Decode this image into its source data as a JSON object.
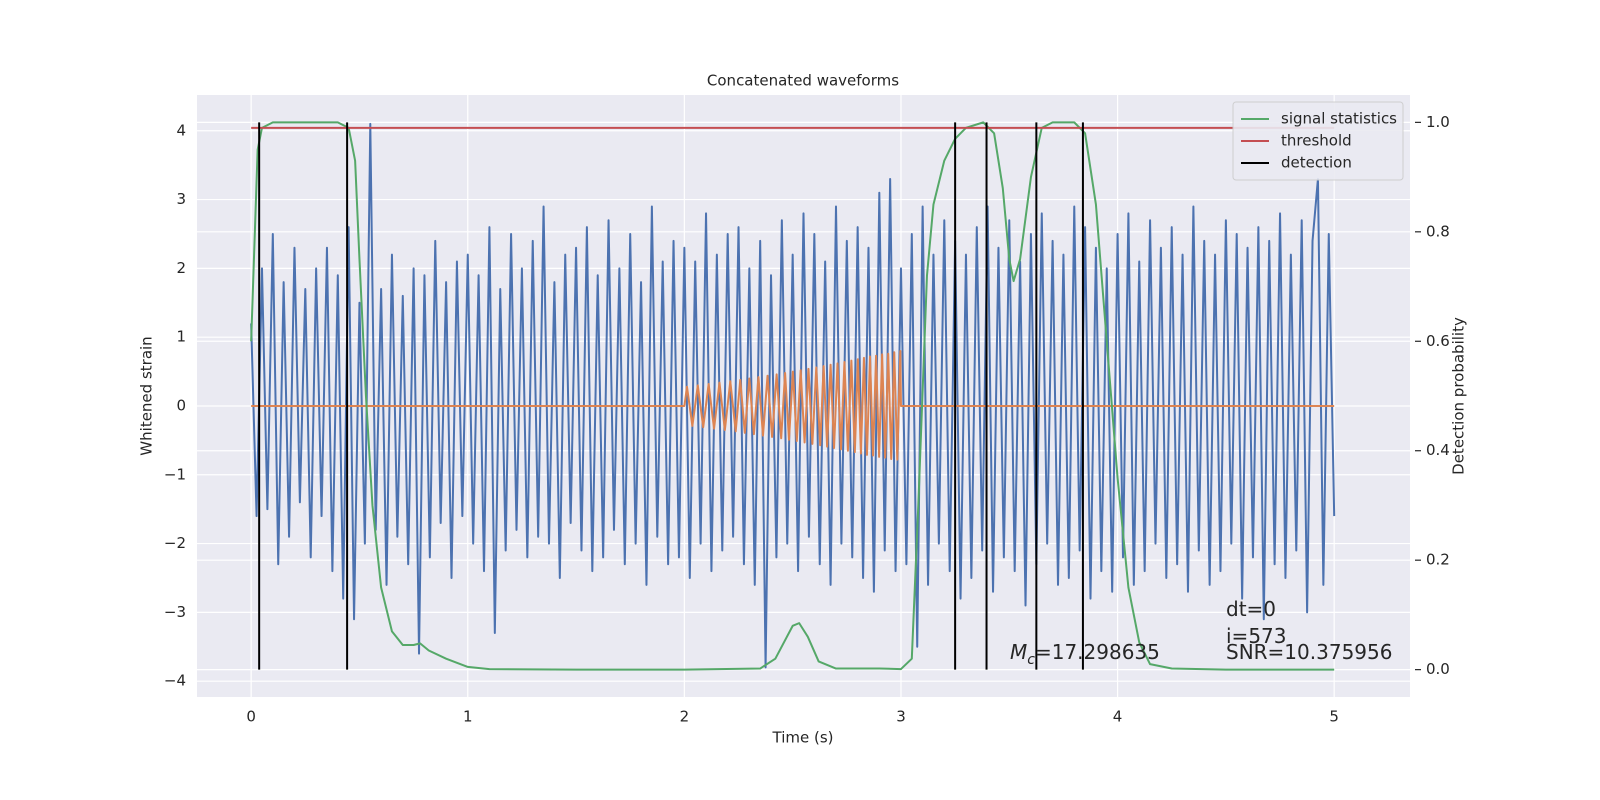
{
  "chart_data": {
    "type": "line",
    "title": "Concatenated waveforms",
    "xlabel": "Time (s)",
    "ylabel": "Whitened strain",
    "y2label": "Detection probability",
    "xlim": [
      -0.25,
      5.35
    ],
    "ylim": [
      -4.23,
      4.52
    ],
    "y2lim": [
      -0.05,
      1.05
    ],
    "xticks": [
      0,
      1,
      2,
      3,
      4,
      5
    ],
    "yticks": [
      {
        "value": -4,
        "label": "−4"
      },
      {
        "value": -3,
        "label": "−3"
      },
      {
        "value": -2,
        "label": "−2"
      },
      {
        "value": -1,
        "label": "−1"
      },
      0,
      1,
      2,
      3,
      4
    ],
    "y2ticks": [
      {
        "value": 0,
        "label": "0.0"
      },
      0.2,
      0.4,
      0.6,
      0.8,
      {
        "value": 1,
        "label": "1.0"
      }
    ],
    "grid": true,
    "legend": "upper right",
    "series": [
      {
        "color": "#4c72b0",
        "x": [
          0,
          0.025,
          0.05,
          0.075,
          0.1,
          0.125,
          0.15,
          0.175,
          0.2,
          0.225,
          0.25,
          0.275,
          0.3,
          0.325,
          0.35,
          0.375,
          0.4,
          0.425,
          0.45,
          0.475,
          0.5,
          0.525,
          0.55,
          0.575,
          0.6,
          0.625,
          0.65,
          0.675,
          0.7,
          0.725,
          0.75,
          0.775,
          0.8,
          0.825,
          0.85,
          0.875,
          0.9,
          0.925,
          0.95,
          0.975,
          1,
          1.025,
          1.05,
          1.075,
          1.1,
          1.125,
          1.15,
          1.175,
          1.2,
          1.225,
          1.25,
          1.275,
          1.3,
          1.325,
          1.35,
          1.375,
          1.4,
          1.425,
          1.45,
          1.475,
          1.5,
          1.525,
          1.55,
          1.575,
          1.6,
          1.625,
          1.65,
          1.675,
          1.7,
          1.725,
          1.75,
          1.775,
          1.8,
          1.825,
          1.85,
          1.875,
          1.9,
          1.925,
          1.95,
          1.975,
          2,
          2.025,
          2.05,
          2.075,
          2.1,
          2.125,
          2.15,
          2.175,
          2.2,
          2.225,
          2.25,
          2.275,
          2.3,
          2.325,
          2.35,
          2.375,
          2.4,
          2.425,
          2.45,
          2.475,
          2.5,
          2.525,
          2.55,
          2.575,
          2.6,
          2.625,
          2.65,
          2.675,
          2.7,
          2.725,
          2.75,
          2.775,
          2.8,
          2.825,
          2.85,
          2.875,
          2.9,
          2.925,
          2.95,
          2.975,
          3,
          3.025,
          3.05,
          3.075,
          3.1,
          3.125,
          3.15,
          3.175,
          3.2,
          3.225,
          3.25,
          3.275,
          3.3,
          3.325,
          3.35,
          3.375,
          3.4,
          3.425,
          3.45,
          3.475,
          3.5,
          3.525,
          3.55,
          3.575,
          3.6,
          3.625,
          3.65,
          3.675,
          3.7,
          3.725,
          3.75,
          3.775,
          3.8,
          3.825,
          3.85,
          3.875,
          3.9,
          3.925,
          3.95,
          3.975,
          4,
          4.025,
          4.05,
          4.075,
          4.1,
          4.125,
          4.15,
          4.175,
          4.2,
          4.225,
          4.25,
          4.275,
          4.3,
          4.325,
          4.35,
          4.375,
          4.4,
          4.425,
          4.45,
          4.475,
          4.5,
          4.525,
          4.55,
          4.575,
          4.6,
          4.625,
          4.65,
          4.675,
          4.7,
          4.725,
          4.75,
          4.775,
          4.8,
          4.825,
          4.85,
          4.875,
          4.9,
          4.925,
          4.95,
          4.975,
          5
        ],
        "values": [
          1.2,
          -1.6,
          2.0,
          -1.5,
          2.5,
          -2.3,
          1.8,
          -1.9,
          2.3,
          -1.4,
          1.7,
          -2.2,
          2.0,
          -1.6,
          2.3,
          -2.4,
          1.9,
          -2.8,
          2.6,
          -3.1,
          1.5,
          -2.0,
          4.1,
          -1.8,
          1.7,
          -2.6,
          2.2,
          -1.9,
          1.6,
          -2.3,
          2.0,
          -3.6,
          1.9,
          -2.2,
          2.4,
          -1.7,
          1.8,
          -2.5,
          2.1,
          -1.6,
          2.2,
          -2.0,
          1.9,
          -2.4,
          2.6,
          -3.3,
          1.7,
          -2.1,
          2.5,
          -1.8,
          2.0,
          -2.2,
          2.4,
          -1.9,
          2.9,
          -2.0,
          1.8,
          -2.5,
          2.2,
          -1.7,
          2.3,
          -2.1,
          2.6,
          -2.4,
          1.9,
          -2.2,
          2.7,
          -1.8,
          2.0,
          -2.3,
          2.5,
          -2.0,
          1.8,
          -2.6,
          2.9,
          -1.9,
          2.1,
          -2.3,
          2.4,
          -2.2,
          2.3,
          -2.5,
          2.1,
          -2.0,
          2.8,
          -2.4,
          2.2,
          -2.1,
          2.5,
          -1.9,
          2.6,
          -2.3,
          2.0,
          -2.6,
          2.4,
          -3.8,
          1.9,
          -2.2,
          2.7,
          -2.0,
          2.2,
          -2.4,
          2.8,
          -1.9,
          2.5,
          -2.3,
          2.1,
          -2.6,
          2.9,
          -2.0,
          2.4,
          -2.2,
          2.6,
          -2.5,
          2.3,
          -2.7,
          3.1,
          -2.1,
          3.3,
          -2.4,
          2.0,
          -2.3,
          2.5,
          -3.5,
          2.9,
          -2.6,
          2.2,
          -2.0,
          2.7,
          -2.4,
          2.4,
          -2.8,
          2.2,
          -2.5,
          2.6,
          -2.1,
          2.9,
          -2.7,
          2.3,
          -2.2,
          2.7,
          -2.4,
          2.1,
          -2.9,
          2.5,
          -2.3,
          2.8,
          -2.0,
          2.4,
          -2.6,
          2.2,
          -2.5,
          2.9,
          -2.1,
          2.6,
          -2.8,
          2.3,
          -2.4,
          2.0,
          -2.7,
          2.5,
          -2.2,
          2.8,
          -2.6,
          2.1,
          -2.4,
          2.7,
          -2.0,
          2.3,
          -2.5,
          2.6,
          -2.3,
          2.2,
          -2.7,
          2.9,
          -2.1,
          2.4,
          -2.6,
          2.2,
          -2.4,
          2.7,
          -2.0,
          2.5,
          -2.8,
          2.3,
          -2.2,
          2.6,
          -3.1,
          2.4,
          -2.3,
          2.8,
          -2.5,
          2.2,
          -2.1,
          2.7,
          -3.0,
          2.4,
          3.3,
          -2.6,
          2.5,
          -1.6
        ]
      },
      {
        "color": "#dd8452",
        "x": [
          0,
          2.0,
          2.012,
          2.037,
          2.062,
          2.087,
          2.112,
          2.137,
          2.162,
          2.187,
          2.212,
          2.237,
          2.258,
          2.279,
          2.3,
          2.321,
          2.342,
          2.363,
          2.384,
          2.405,
          2.426,
          2.447,
          2.465,
          2.483,
          2.501,
          2.519,
          2.537,
          2.555,
          2.573,
          2.591,
          2.609,
          2.627,
          2.643,
          2.659,
          2.675,
          2.691,
          2.707,
          2.723,
          2.739,
          2.755,
          2.771,
          2.787,
          2.801,
          2.815,
          2.829,
          2.843,
          2.857,
          2.871,
          2.885,
          2.899,
          2.913,
          2.927,
          2.941,
          2.955,
          2.969,
          2.983,
          2.997,
          3.0,
          5.0
        ],
        "values": [
          0,
          0,
          0.28,
          -0.29,
          0.3,
          -0.31,
          0.32,
          -0.33,
          0.34,
          -0.35,
          0.36,
          -0.37,
          0.38,
          -0.39,
          0.4,
          -0.41,
          0.42,
          -0.43,
          0.44,
          -0.45,
          0.46,
          -0.47,
          0.48,
          -0.49,
          0.5,
          -0.51,
          0.52,
          -0.53,
          0.54,
          -0.55,
          0.56,
          -0.57,
          0.58,
          -0.59,
          0.6,
          -0.61,
          0.62,
          -0.63,
          0.64,
          -0.65,
          0.66,
          -0.67,
          0.68,
          -0.69,
          0.7,
          -0.71,
          0.72,
          -0.72,
          0.73,
          -0.74,
          0.75,
          -0.75,
          0.76,
          -0.77,
          0.78,
          -0.78,
          0.8,
          0,
          0
        ]
      },
      {
        "name": "signal statistics",
        "color": "#55a868",
        "axis": "y2",
        "x": [
          0,
          0.03,
          0.05,
          0.1,
          0.2,
          0.3,
          0.4,
          0.45,
          0.48,
          0.5,
          0.53,
          0.56,
          0.6,
          0.65,
          0.7,
          0.75,
          0.78,
          0.82,
          0.9,
          1.0,
          1.1,
          1.5,
          2.0,
          2.35,
          2.42,
          2.5,
          2.53,
          2.57,
          2.62,
          2.7,
          2.9,
          3.0,
          3.05,
          3.08,
          3.12,
          3.15,
          3.2,
          3.25,
          3.3,
          3.38,
          3.43,
          3.47,
          3.5,
          3.52,
          3.55,
          3.6,
          3.65,
          3.7,
          3.8,
          3.85,
          3.9,
          3.95,
          4.0,
          4.05,
          4.1,
          4.15,
          4.25,
          4.5,
          5.0
        ],
        "values": [
          0.6,
          0.95,
          0.99,
          1.0,
          1.0,
          1.0,
          1.0,
          0.99,
          0.93,
          0.75,
          0.5,
          0.3,
          0.15,
          0.07,
          0.045,
          0.045,
          0.048,
          0.035,
          0.02,
          0.005,
          0.001,
          0,
          0,
          0.002,
          0.02,
          0.08,
          0.085,
          0.06,
          0.015,
          0.002,
          0.002,
          0.001,
          0.02,
          0.3,
          0.72,
          0.85,
          0.93,
          0.97,
          0.99,
          1.0,
          0.98,
          0.88,
          0.75,
          0.71,
          0.75,
          0.9,
          0.99,
          1.0,
          1.0,
          0.98,
          0.85,
          0.6,
          0.35,
          0.15,
          0.05,
          0.01,
          0.002,
          0,
          0
        ]
      },
      {
        "name": "threshold",
        "color": "#c44e52",
        "axis": "y2",
        "x": [
          0,
          5
        ],
        "values": [
          0.99,
          0.99
        ]
      },
      {
        "name": "detection",
        "color": "#000000",
        "axis": "y2",
        "kind": "vlines",
        "x": [
          0.037,
          0.443,
          3.25,
          3.395,
          3.625,
          3.84
        ],
        "ymin": 0,
        "ymax": 1
      }
    ],
    "annotations": {
      "mass_symbol": "M",
      "mass_subscript": "c",
      "mass_text": "=17.298635",
      "dt": "dt=0",
      "i": "i=573",
      "snr": "SNR=10.375956"
    }
  }
}
